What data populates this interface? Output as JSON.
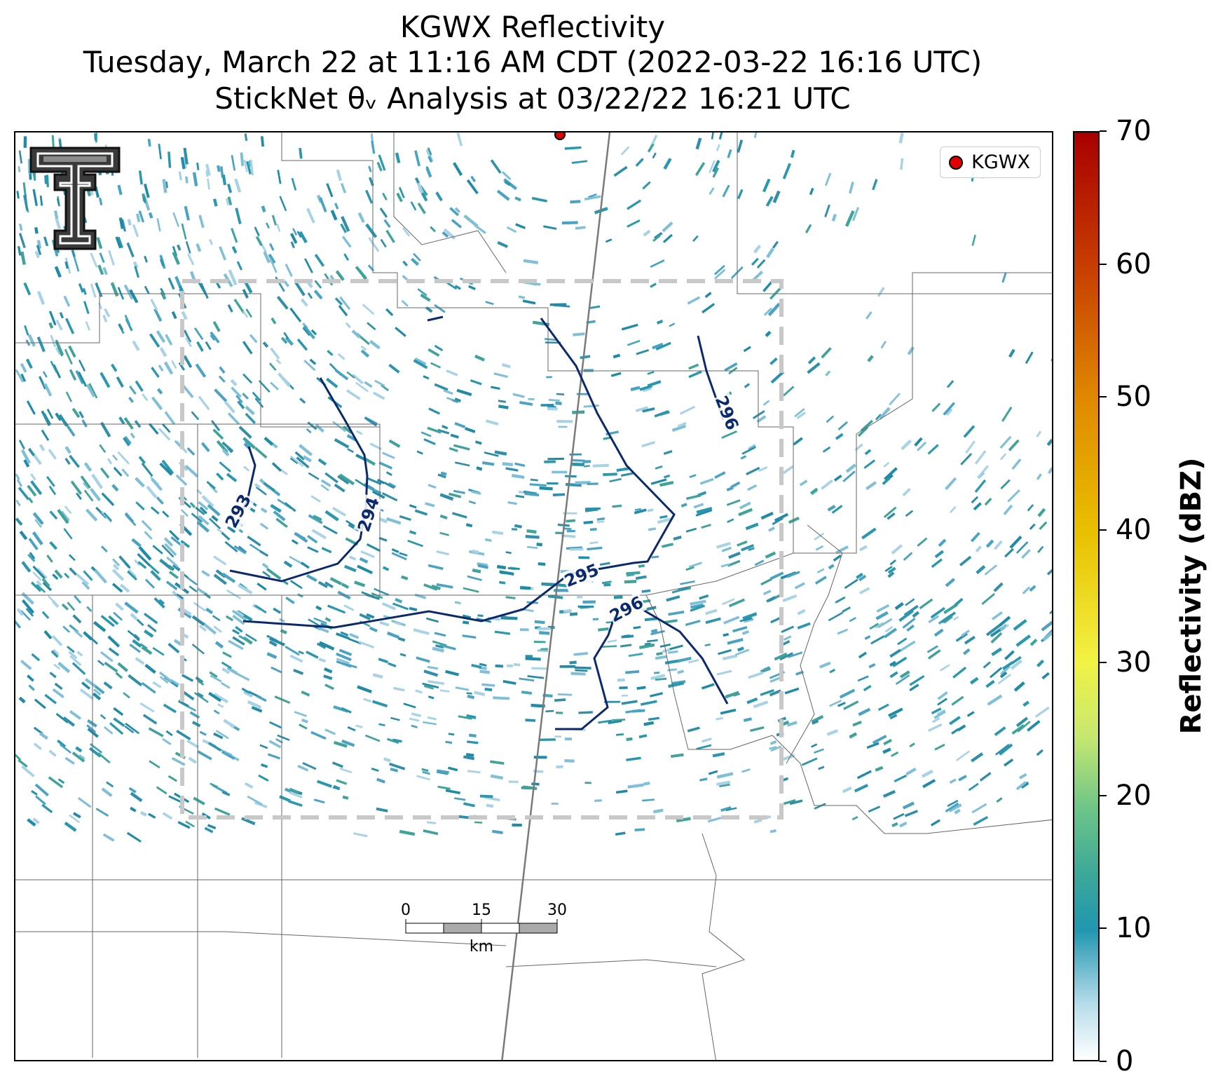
{
  "titles": {
    "line1": "KGWX Reflectivity",
    "line2": "Tuesday, March 22 at 11:16 AM CDT (2022-03-22 16:16 UTC)",
    "line3": "StickNet θᵥ Analysis at 03/22/22 16:21 UTC"
  },
  "legend": {
    "label": "KGWX",
    "marker_color": "#e00000"
  },
  "colorbar": {
    "label": "Reflectivity (dBZ)",
    "min": 0,
    "max": 70,
    "ticks": [
      "0",
      "10",
      "20",
      "30",
      "40",
      "50",
      "60",
      "70"
    ]
  },
  "contours": {
    "color": "#0b2a6e",
    "labels": [
      "293",
      "294",
      "295",
      "296",
      "296"
    ]
  },
  "scale_bar": {
    "labels": [
      "0",
      "15",
      "30"
    ],
    "unit": "km"
  },
  "logo": {
    "name": "texas-tech-double-t-logo"
  },
  "analysis_box": {
    "color": "#c8c8c8",
    "style": "dashed"
  }
}
